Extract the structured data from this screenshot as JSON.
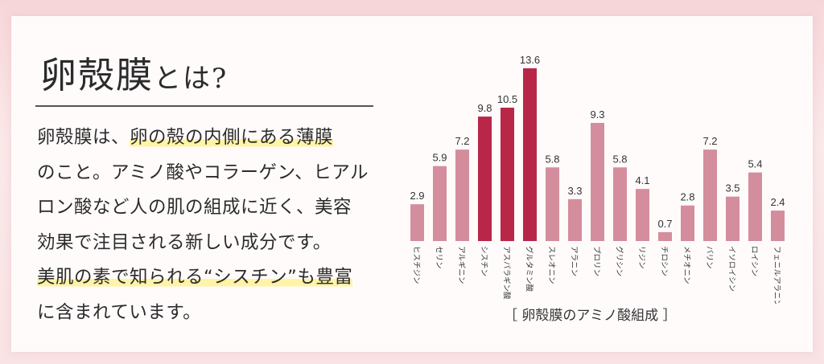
{
  "heading": {
    "main": "卵殻膜",
    "suffix": "とは?"
  },
  "paragraph": {
    "line1_a": "卵殻膜は、",
    "line1_b": "卵の殻の内側にある薄膜",
    "line2": "のこと。アミノ酸やコラーゲン、ヒアル",
    "line3": "ロン酸など人の肌の組成に近く、美容",
    "line4": "効果で注目される新しい成分です。",
    "line5": "美肌の素で知られる“シスチン”も豊富",
    "line6": "に含まれています。"
  },
  "caption": "［ 卵殻膜のアミノ酸組成 ］",
  "colors": {
    "normal": "#d48d9c",
    "highlight": "#b82748",
    "accent_highlight": "#fff3a6"
  },
  "chart_data": {
    "type": "bar",
    "title": "卵殻膜のアミノ酸組成",
    "categories": [
      "ヒスチジン",
      "セリン",
      "アルギニン",
      "シスチン",
      "アスパラギン酸",
      "グルタミン酸",
      "スレオニン",
      "アラニン",
      "プロリン",
      "グリシン",
      "リジン",
      "チロシン",
      "メチオニン",
      "バリン",
      "イソロイシン",
      "ロイシン",
      "フェニルアラニン"
    ],
    "values": [
      2.9,
      5.9,
      7.2,
      9.8,
      10.5,
      13.6,
      5.8,
      3.3,
      9.3,
      5.8,
      4.1,
      0.7,
      2.8,
      7.2,
      3.5,
      5.4,
      2.4
    ],
    "highlighted": [
      "シスチン",
      "アスパラギン酸",
      "グルタミン酸"
    ],
    "ylim": [
      0,
      13.6
    ],
    "grid": false,
    "legend": "none"
  }
}
